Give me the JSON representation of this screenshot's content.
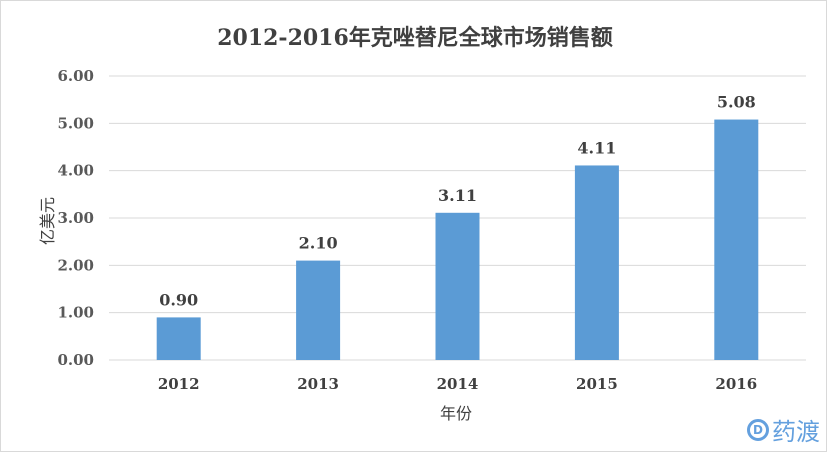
{
  "chart_data": {
    "type": "bar",
    "title": "2012-2016年克唑替尼全球市场销售额",
    "xlabel": "年份",
    "ylabel": "亿美元",
    "categories": [
      "2012",
      "2013",
      "2014",
      "2015",
      "2016"
    ],
    "values": [
      0.9,
      2.1,
      3.11,
      4.11,
      5.08
    ],
    "data_labels": [
      "0.90",
      "2.10",
      "3.11",
      "4.11",
      "5.08"
    ],
    "ylim": [
      0,
      6
    ],
    "yticks": [
      "0.00",
      "1.00",
      "2.00",
      "3.00",
      "4.00",
      "5.00",
      "6.00"
    ],
    "grid": true,
    "legend": "none",
    "bar_color": "#5b9bd5"
  },
  "watermark": "药渡"
}
